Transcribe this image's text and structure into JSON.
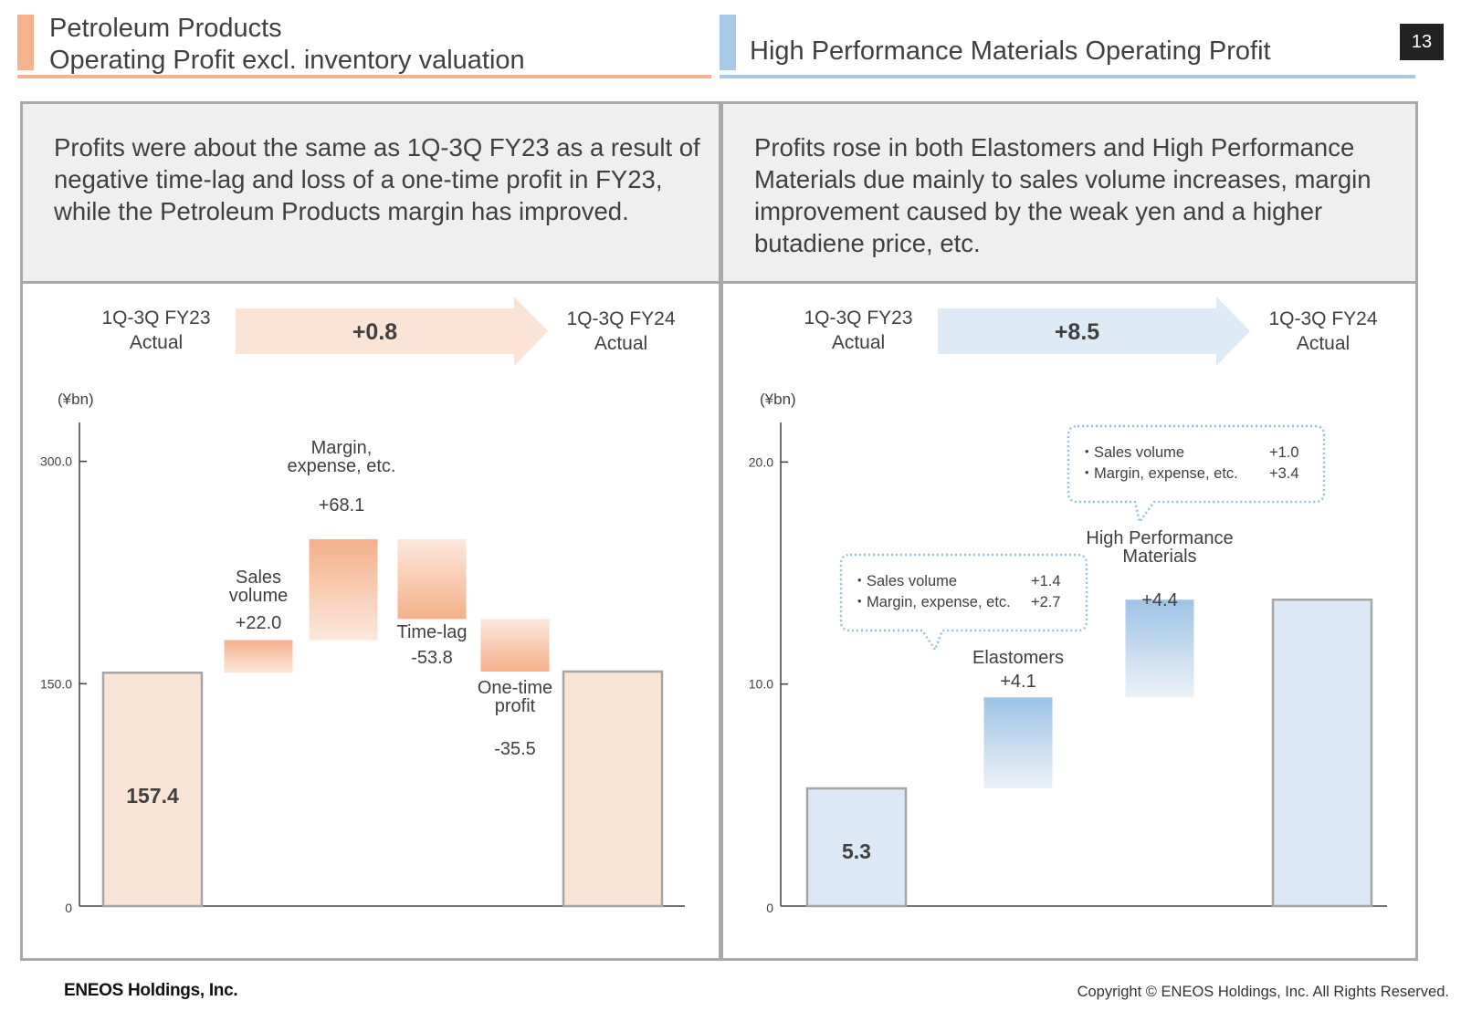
{
  "page_number": "13",
  "left": {
    "title_line1": "Petroleum Products",
    "title_line2": "Operating Profit excl. inventory valuation",
    "summary": "Profits were about the same as 1Q-3Q FY23 as a result of negative time-lag and loss of a one-time profit in FY23, while the Petroleum Products margin has improved.",
    "from_label_1": "1Q-3Q FY23",
    "from_label_2": "Actual",
    "to_label_1": "1Q-3Q FY24",
    "to_label_2": "Actual",
    "delta": "+0.8",
    "unit": "(¥bn)"
  },
  "right": {
    "title": "High Performance Materials Operating Profit",
    "summary": "Profits rose in both Elastomers and High Performance Materials due mainly to sales volume increases, margin improvement caused by the weak yen and a higher butadiene price, etc.",
    "from_label_1": "1Q-3Q FY23",
    "from_label_2": "Actual",
    "to_label_1": "1Q-3Q FY24",
    "to_label_2": "Actual",
    "delta": "+8.5",
    "unit": "(¥bn)"
  },
  "chart_data": [
    {
      "type": "waterfall",
      "ylabel": "(¥bn)",
      "ylim": [
        0,
        325
      ],
      "yticks": [
        "0",
        "150.0",
        "300.0"
      ],
      "ytick_values": [
        0,
        150,
        300
      ],
      "bars": [
        {
          "kind": "total",
          "value": 157.4,
          "value_label": "157.4",
          "label_lines": []
        },
        {
          "kind": "up",
          "start": 157.4,
          "value": 22.0,
          "value_label": "+22.0",
          "label_lines": [
            "Sales",
            "volume"
          ]
        },
        {
          "kind": "up",
          "start": 179.4,
          "value": 68.1,
          "value_label": "+68.1",
          "label_lines": [
            "Margin,",
            "expense, etc."
          ]
        },
        {
          "kind": "down",
          "start": 247.5,
          "value": -53.8,
          "value_label": "-53.8",
          "label_lines": [
            "Time-lag"
          ]
        },
        {
          "kind": "down",
          "start": 193.7,
          "value": -35.5,
          "value_label": "-35.5",
          "label_lines": [
            "One-time",
            "profit"
          ]
        },
        {
          "kind": "total",
          "value": 158.2,
          "value_label": "158.2",
          "label_lines": []
        }
      ],
      "colors": {
        "total_fill": "#fae4d6",
        "up_top": "#f4b08a",
        "down_bottom": "#f4b08a",
        "fade": "#fce8dc",
        "border": "#a6a6a6"
      }
    },
    {
      "type": "waterfall",
      "ylabel": "(¥bn)",
      "ylim": [
        0,
        21.7
      ],
      "yticks": [
        "0",
        "10.0",
        "20.0"
      ],
      "ytick_values": [
        0,
        10,
        20
      ],
      "bars": [
        {
          "kind": "total",
          "value": 5.3,
          "value_label": "5.3",
          "label_lines": []
        },
        {
          "kind": "up",
          "start": 5.3,
          "value": 4.1,
          "value_label": "+4.1",
          "label_lines": [
            "Elastomers"
          ],
          "callout": [
            {
              "name": "Sales volume",
              "value": "+1.4"
            },
            {
              "name": "Margin, expense, etc.",
              "value": "+2.7"
            }
          ]
        },
        {
          "kind": "up",
          "start": 9.4,
          "value": 4.4,
          "value_label": "+4.4",
          "label_lines": [
            "High Performance",
            "Materials"
          ],
          "callout": [
            {
              "name": "Sales volume",
              "value": "+1.0"
            },
            {
              "name": "Margin, expense, etc.",
              "value": "+3.4"
            }
          ]
        },
        {
          "kind": "total",
          "value": 13.8,
          "value_label": "13.8",
          "label_lines": []
        }
      ],
      "colors": {
        "total_fill": "#dce8f5",
        "up_top": "#9dc3e6",
        "fade": "#edf2f8",
        "border": "#a6a6a6"
      }
    }
  ],
  "footer": {
    "company": "ENEOS Holdings, Inc.",
    "copyright": "Copyright © ENEOS Holdings, Inc. All Rights Reserved."
  },
  "colors": {
    "left_accent": "#f4b490",
    "right_accent": "#a9c9e8",
    "text": "#404040"
  }
}
